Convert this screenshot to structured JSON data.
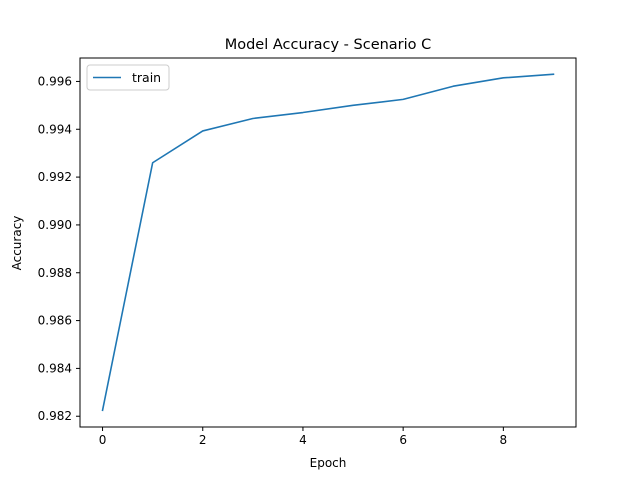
{
  "chart_data": {
    "type": "line",
    "title": "Model Accuracy - Scenario C",
    "xlabel": "Epoch",
    "ylabel": "Accuracy",
    "xlim": [
      -0.45,
      9.45
    ],
    "ylim": [
      0.98155,
      0.99698
    ],
    "xticks": [
      0,
      2,
      4,
      6,
      8
    ],
    "xtick_labels": [
      "0",
      "2",
      "4",
      "6",
      "8"
    ],
    "yticks": [
      0.982,
      0.984,
      0.986,
      0.988,
      0.99,
      0.992,
      0.994,
      0.996
    ],
    "ytick_labels": [
      "0.982",
      "0.984",
      "0.986",
      "0.988",
      "0.990",
      "0.992",
      "0.994",
      "0.996"
    ],
    "grid": false,
    "legend_position": "upper-left",
    "series": [
      {
        "name": "train",
        "color": "#1f77b4",
        "x": [
          0,
          1,
          2,
          3,
          4,
          5,
          6,
          7,
          8,
          9
        ],
        "y": [
          0.98225,
          0.9926,
          0.99393,
          0.99445,
          0.9947,
          0.995,
          0.99525,
          0.9958,
          0.99615,
          0.9963
        ]
      }
    ]
  }
}
